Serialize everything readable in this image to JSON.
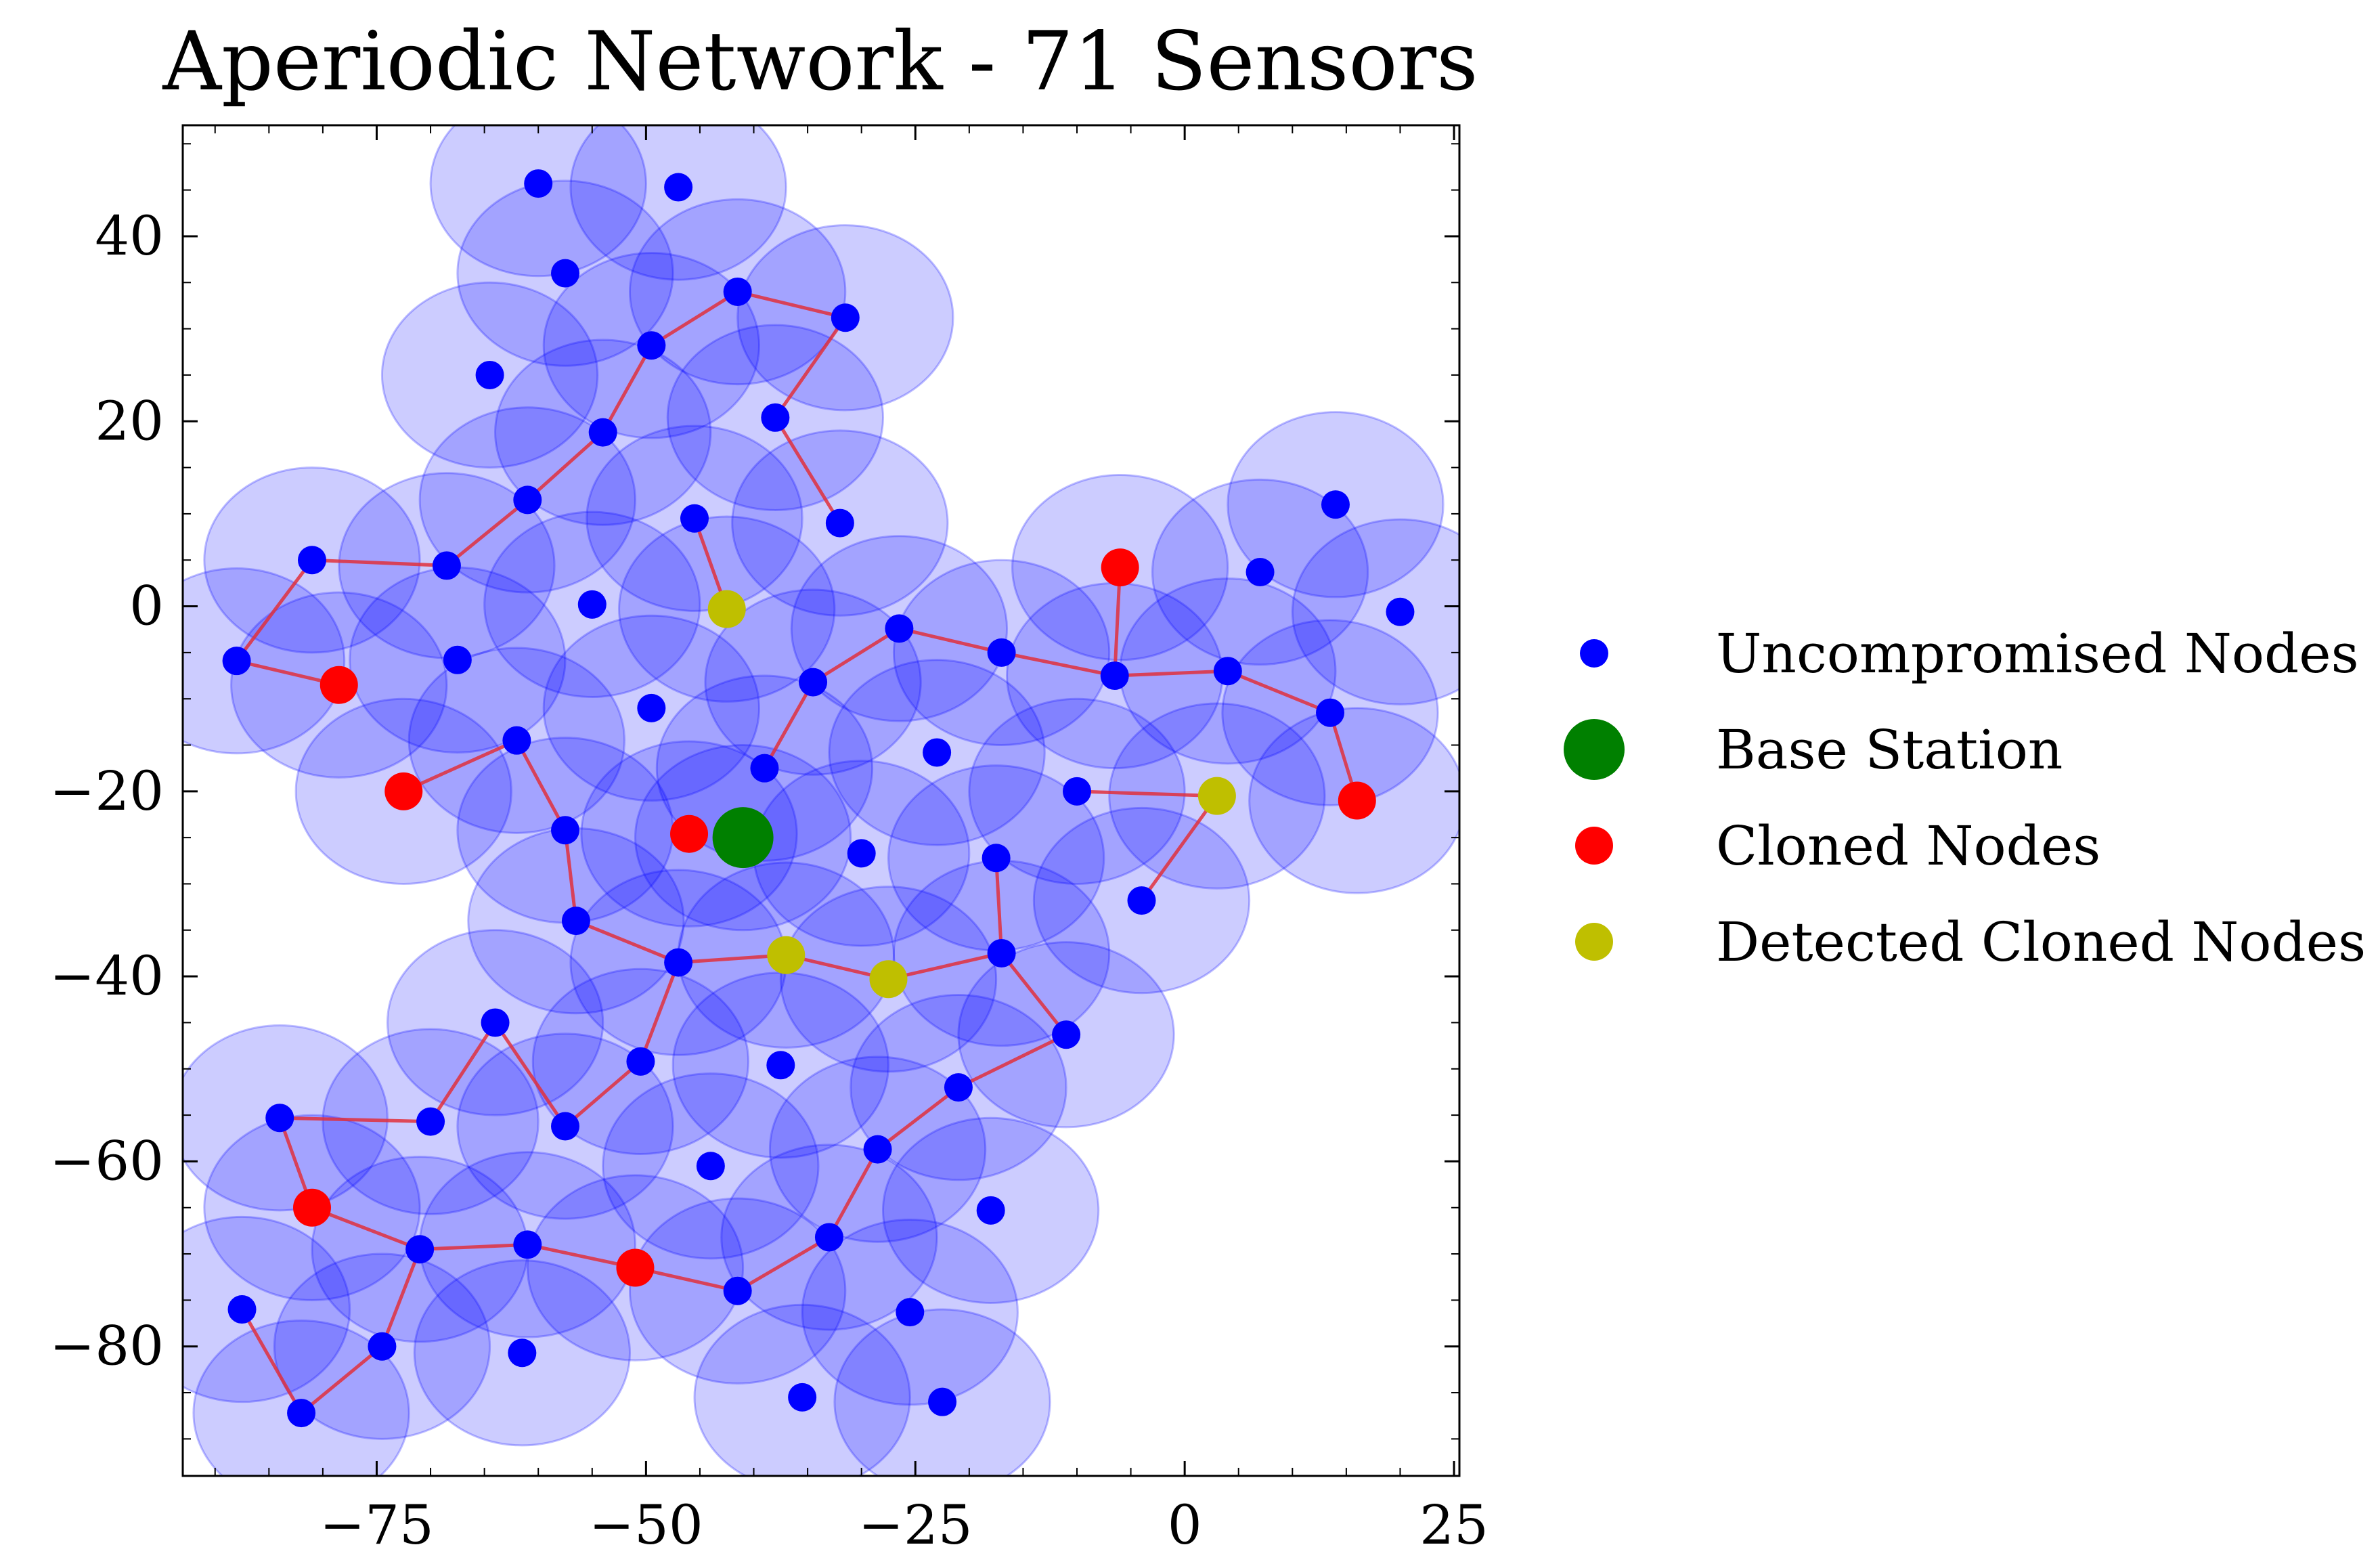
{
  "chart_data": {
    "type": "scatter",
    "title": "Aperiodic Network - 71 Sensors",
    "xlabel": "",
    "ylabel": "",
    "xlim": [
      -93,
      25.5
    ],
    "ylim": [
      -94,
      52
    ],
    "xticks": [
      -75,
      -50,
      -25,
      0,
      25
    ],
    "xtick_labels": [
      "−75",
      "−50",
      "−25",
      "0",
      "25"
    ],
    "yticks": [
      40,
      20,
      0,
      -20,
      -40,
      -60,
      -80
    ],
    "ytick_labels": [
      "40",
      "20",
      "0",
      "−20",
      "−40",
      "−60",
      "−80"
    ],
    "grid": false,
    "legend_position": "right",
    "colors": {
      "uncompromised": "#0000ff",
      "base_station": "#008000",
      "cloned": "#ff0000",
      "detected": "#bfbf00",
      "coverage_fill": "#0000ff",
      "path": "#e0303c"
    },
    "coverage_radius": 10,
    "legend": [
      {
        "label": "Uncompromised Nodes",
        "kind": "uncompromised"
      },
      {
        "label": "Base Station",
        "kind": "base_station"
      },
      {
        "label": "Cloned Nodes",
        "kind": "cloned"
      },
      {
        "label": "Detected Cloned Nodes",
        "kind": "detected"
      }
    ],
    "uncompromised_nodes": [
      [
        -60,
        45.7
      ],
      [
        -47,
        45.3
      ],
      [
        -57.5,
        36
      ],
      [
        -41.5,
        34
      ],
      [
        -31.5,
        31.2
      ],
      [
        -64.5,
        25
      ],
      [
        -49.5,
        28.2
      ],
      [
        -38,
        20.4
      ],
      [
        -54,
        18.8
      ],
      [
        -61,
        11.5
      ],
      [
        -45.5,
        9.5
      ],
      [
        -32,
        9
      ],
      [
        -81,
        5
      ],
      [
        -68.5,
        4.4
      ],
      [
        -55,
        0.2
      ],
      [
        -88,
        -5.9
      ],
      [
        -67.5,
        -5.8
      ],
      [
        -26.5,
        -2.4
      ],
      [
        -17,
        -5
      ],
      [
        -6.5,
        -7.5
      ],
      [
        4,
        -7
      ],
      [
        7,
        3.7
      ],
      [
        14,
        11
      ],
      [
        20,
        -0.6
      ],
      [
        13.5,
        -11.5
      ],
      [
        -49.5,
        -11
      ],
      [
        -34.5,
        -8.2
      ],
      [
        -62,
        -14.5
      ],
      [
        -39,
        -17.5
      ],
      [
        -23,
        -15.8
      ],
      [
        -10,
        -20
      ],
      [
        -57.5,
        -24.2
      ],
      [
        -30,
        -26.7
      ],
      [
        -17.5,
        -27.2
      ],
      [
        -4,
        -31.8
      ],
      [
        -56.5,
        -34
      ],
      [
        -47,
        -38.5
      ],
      [
        -17,
        -37.5
      ],
      [
        -11,
        -46.3
      ],
      [
        -64,
        -45
      ],
      [
        -50.5,
        -49.2
      ],
      [
        -37.5,
        -49.6
      ],
      [
        -21,
        -52
      ],
      [
        -84,
        -55.3
      ],
      [
        -70,
        -55.7
      ],
      [
        -57.5,
        -56.2
      ],
      [
        -28.5,
        -58.7
      ],
      [
        -44,
        -60.5
      ],
      [
        -18,
        -65.3
      ],
      [
        -71,
        -69.5
      ],
      [
        -61,
        -69
      ],
      [
        -33,
        -68.2
      ],
      [
        -41.5,
        -74
      ],
      [
        -87.5,
        -76
      ],
      [
        -25.5,
        -76.3
      ],
      [
        -74.5,
        -80
      ],
      [
        -61.5,
        -80.7
      ],
      [
        -35.5,
        -85.5
      ],
      [
        -22.5,
        -86
      ],
      [
        -82,
        -87.2
      ]
    ],
    "base_station": [
      -41,
      -25
    ],
    "cloned_nodes": [
      [
        -6,
        4.2
      ],
      [
        -78.5,
        -8.5
      ],
      [
        -72.5,
        -20
      ],
      [
        16,
        -21
      ],
      [
        -46,
        -24.6
      ],
      [
        -81,
        -65
      ],
      [
        -51,
        -71.5
      ]
    ],
    "detected_cloned_nodes": [
      [
        -42.5,
        -0.3
      ],
      [
        3,
        -20.5
      ],
      [
        -37,
        -37.7
      ],
      [
        -27.5,
        -40.3
      ]
    ],
    "path_segments": [
      [
        [
          -41.5,
          34
        ],
        [
          -31.5,
          31.2
        ],
        [
          -38,
          20.4
        ],
        [
          -32,
          9
        ]
      ],
      [
        [
          -45.5,
          9.5
        ],
        [
          -42.5,
          -0.3
        ]
      ],
      [
        [
          -41.5,
          34
        ],
        [
          -49.5,
          28.2
        ],
        [
          -54,
          18.8
        ],
        [
          -61,
          11.5
        ],
        [
          -68.5,
          4.4
        ],
        [
          -81,
          5
        ],
        [
          -88,
          -5.9
        ],
        [
          -78.5,
          -8.5
        ]
      ],
      [
        [
          -6,
          4.2
        ],
        [
          -6.5,
          -7.5
        ]
      ],
      [
        [
          -39,
          -17.5
        ],
        [
          -34.5,
          -8.2
        ],
        [
          -26.5,
          -2.4
        ],
        [
          -17,
          -5
        ],
        [
          -6.5,
          -7.5
        ],
        [
          4,
          -7
        ],
        [
          13.5,
          -11.5
        ],
        [
          16,
          -21
        ]
      ],
      [
        [
          -10,
          -20
        ],
        [
          3,
          -20.5
        ],
        [
          -4,
          -31.8
        ]
      ],
      [
        [
          -72.5,
          -20
        ],
        [
          -62,
          -14.5
        ],
        [
          -57.5,
          -24.2
        ],
        [
          -56.5,
          -34
        ],
        [
          -47,
          -38.5
        ],
        [
          -37,
          -37.7
        ],
        [
          -27.5,
          -40.3
        ],
        [
          -17,
          -37.5
        ],
        [
          -17.5,
          -27.2
        ]
      ],
      [
        [
          -47,
          -38.5
        ],
        [
          -50.5,
          -49.2
        ],
        [
          -57.5,
          -56.2
        ],
        [
          -64,
          -45
        ],
        [
          -70,
          -55.7
        ],
        [
          -84,
          -55.3
        ],
        [
          -81,
          -65
        ],
        [
          -71,
          -69.5
        ],
        [
          -61,
          -69
        ],
        [
          -51,
          -71.5
        ],
        [
          -41.5,
          -74
        ],
        [
          -33,
          -68.2
        ],
        [
          -28.5,
          -58.7
        ],
        [
          -21,
          -52
        ],
        [
          -11,
          -46.3
        ],
        [
          -17,
          -37.5
        ]
      ],
      [
        [
          -71,
          -69.5
        ],
        [
          -74.5,
          -80
        ],
        [
          -82,
          -87.2
        ],
        [
          -87.5,
          -76
        ]
      ]
    ]
  }
}
